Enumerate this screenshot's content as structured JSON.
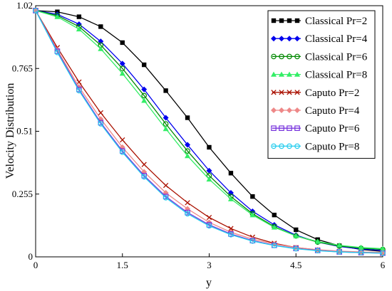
{
  "chart_data": {
    "type": "line",
    "title": "",
    "xlabel": "y",
    "ylabel": "Velocity Distribution",
    "xlim": [
      0,
      6
    ],
    "ylim": [
      0,
      1.02
    ],
    "xticks": [
      "0",
      "1.5",
      "3",
      "4.5",
      "6"
    ],
    "yticks": [
      "0",
      "0.255",
      "0.51",
      "0.765",
      "1.02"
    ],
    "ytick_values": [
      0,
      0.255,
      0.51,
      0.765,
      1.02
    ],
    "xtick_values": [
      0,
      1.5,
      3,
      4.5,
      6
    ],
    "grid": false,
    "legend": "top-right",
    "x": [
      0,
      0.375,
      0.75,
      1.125,
      1.5,
      1.875,
      2.25,
      2.625,
      3,
      3.375,
      3.75,
      4.125,
      4.5,
      4.875,
      5.25,
      5.625,
      6
    ],
    "series": [
      {
        "name": "Classical Pr=2",
        "color": "#000000",
        "marker": "square-filled",
        "values": [
          1.0,
          0.995,
          0.975,
          0.935,
          0.87,
          0.78,
          0.675,
          0.565,
          0.445,
          0.34,
          0.245,
          0.17,
          0.11,
          0.07,
          0.045,
          0.03,
          0.022
        ]
      },
      {
        "name": "Classical Pr=4",
        "color": "#0000ee",
        "marker": "diamond-filled",
        "values": [
          1.0,
          0.985,
          0.945,
          0.875,
          0.785,
          0.68,
          0.565,
          0.455,
          0.35,
          0.26,
          0.185,
          0.13,
          0.088,
          0.06,
          0.042,
          0.032,
          0.026
        ]
      },
      {
        "name": "Classical Pr=6",
        "color": "#008800",
        "marker": "circle-open",
        "values": [
          1.0,
          0.98,
          0.935,
          0.86,
          0.765,
          0.655,
          0.54,
          0.43,
          0.33,
          0.245,
          0.175,
          0.123,
          0.085,
          0.06,
          0.044,
          0.035,
          0.03
        ]
      },
      {
        "name": "Classical Pr=8",
        "color": "#33ee66",
        "marker": "triangle-filled",
        "values": [
          1.0,
          0.975,
          0.925,
          0.845,
          0.745,
          0.635,
          0.52,
          0.41,
          0.315,
          0.235,
          0.17,
          0.12,
          0.085,
          0.062,
          0.047,
          0.038,
          0.033
        ]
      },
      {
        "name": "Caputo Pr=2",
        "color": "#aa1100",
        "marker": "x",
        "values": [
          1.0,
          0.85,
          0.71,
          0.585,
          0.475,
          0.375,
          0.29,
          0.22,
          0.16,
          0.115,
          0.08,
          0.055,
          0.038,
          0.028,
          0.022,
          0.018,
          0.016
        ]
      },
      {
        "name": "Caputo Pr=4",
        "color": "#ee8888",
        "marker": "diamond-filled",
        "values": [
          1.0,
          0.84,
          0.69,
          0.56,
          0.445,
          0.345,
          0.26,
          0.195,
          0.14,
          0.1,
          0.072,
          0.052,
          0.038,
          0.029,
          0.023,
          0.02,
          0.018
        ]
      },
      {
        "name": "Caputo Pr=6",
        "color": "#7733dd",
        "marker": "square-open",
        "values": [
          1.0,
          0.835,
          0.68,
          0.545,
          0.43,
          0.33,
          0.245,
          0.18,
          0.13,
          0.093,
          0.066,
          0.047,
          0.034,
          0.026,
          0.02,
          0.017,
          0.015
        ]
      },
      {
        "name": "Caputo Pr=8",
        "color": "#22ccee",
        "marker": "circle-open",
        "values": [
          1.0,
          0.83,
          0.675,
          0.54,
          0.425,
          0.325,
          0.24,
          0.175,
          0.126,
          0.09,
          0.064,
          0.046,
          0.033,
          0.025,
          0.02,
          0.017,
          0.015
        ]
      }
    ]
  }
}
